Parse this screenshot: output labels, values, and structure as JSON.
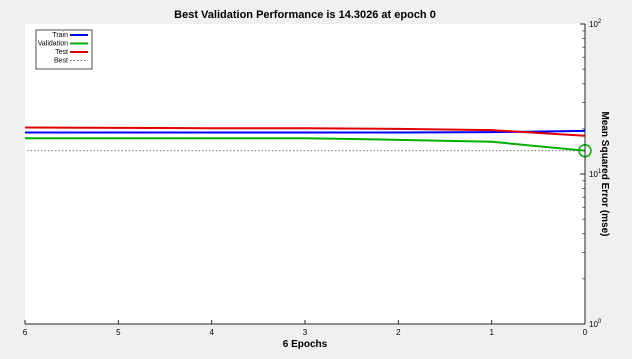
{
  "chart_data": {
    "type": "line",
    "title": "Best Validation Performance is 14.3026 at epoch 0",
    "xlabel": "6 Epochs",
    "ylabel": "Mean Squared Error  (mse)",
    "x_reversed": true,
    "y_side": "right",
    "xlim": [
      0,
      6
    ],
    "ylim": [
      1,
      100
    ],
    "yscale": "log",
    "x_ticks": [
      0,
      1,
      2,
      3,
      4,
      5,
      6
    ],
    "y_ticks": [
      {
        "base": "10",
        "exp": "0",
        "value": 1
      },
      {
        "base": "10",
        "exp": "1",
        "value": 10
      },
      {
        "base": "10",
        "exp": "2",
        "value": 100
      }
    ],
    "legend_position": "top-left",
    "series": [
      {
        "name": "Train",
        "color": "#0000ff",
        "style": "solid",
        "x": [
          0,
          1,
          2,
          3,
          4,
          5,
          6
        ],
        "y": [
          19.4,
          19.0,
          18.9,
          18.9,
          18.9,
          18.9,
          18.9
        ]
      },
      {
        "name": "Validation",
        "color": "#00b000",
        "style": "solid",
        "x": [
          0,
          1,
          2,
          3,
          4,
          5,
          6
        ],
        "y": [
          14.3026,
          16.4,
          16.9,
          17.3,
          17.3,
          17.3,
          17.3
        ]
      },
      {
        "name": "Test",
        "color": "#e00000",
        "style": "solid",
        "x": [
          0,
          1,
          2,
          3,
          4,
          5,
          6
        ],
        "y": [
          18.0,
          19.6,
          20.0,
          20.2,
          20.2,
          20.3,
          20.4
        ]
      },
      {
        "name": "Best",
        "color": "#606060",
        "style": "dotted",
        "x": [
          0,
          6
        ],
        "y": [
          14.3026,
          14.3026
        ]
      }
    ],
    "best_marker": {
      "x": 0,
      "y": 14.3026,
      "color": "#00b000"
    }
  }
}
